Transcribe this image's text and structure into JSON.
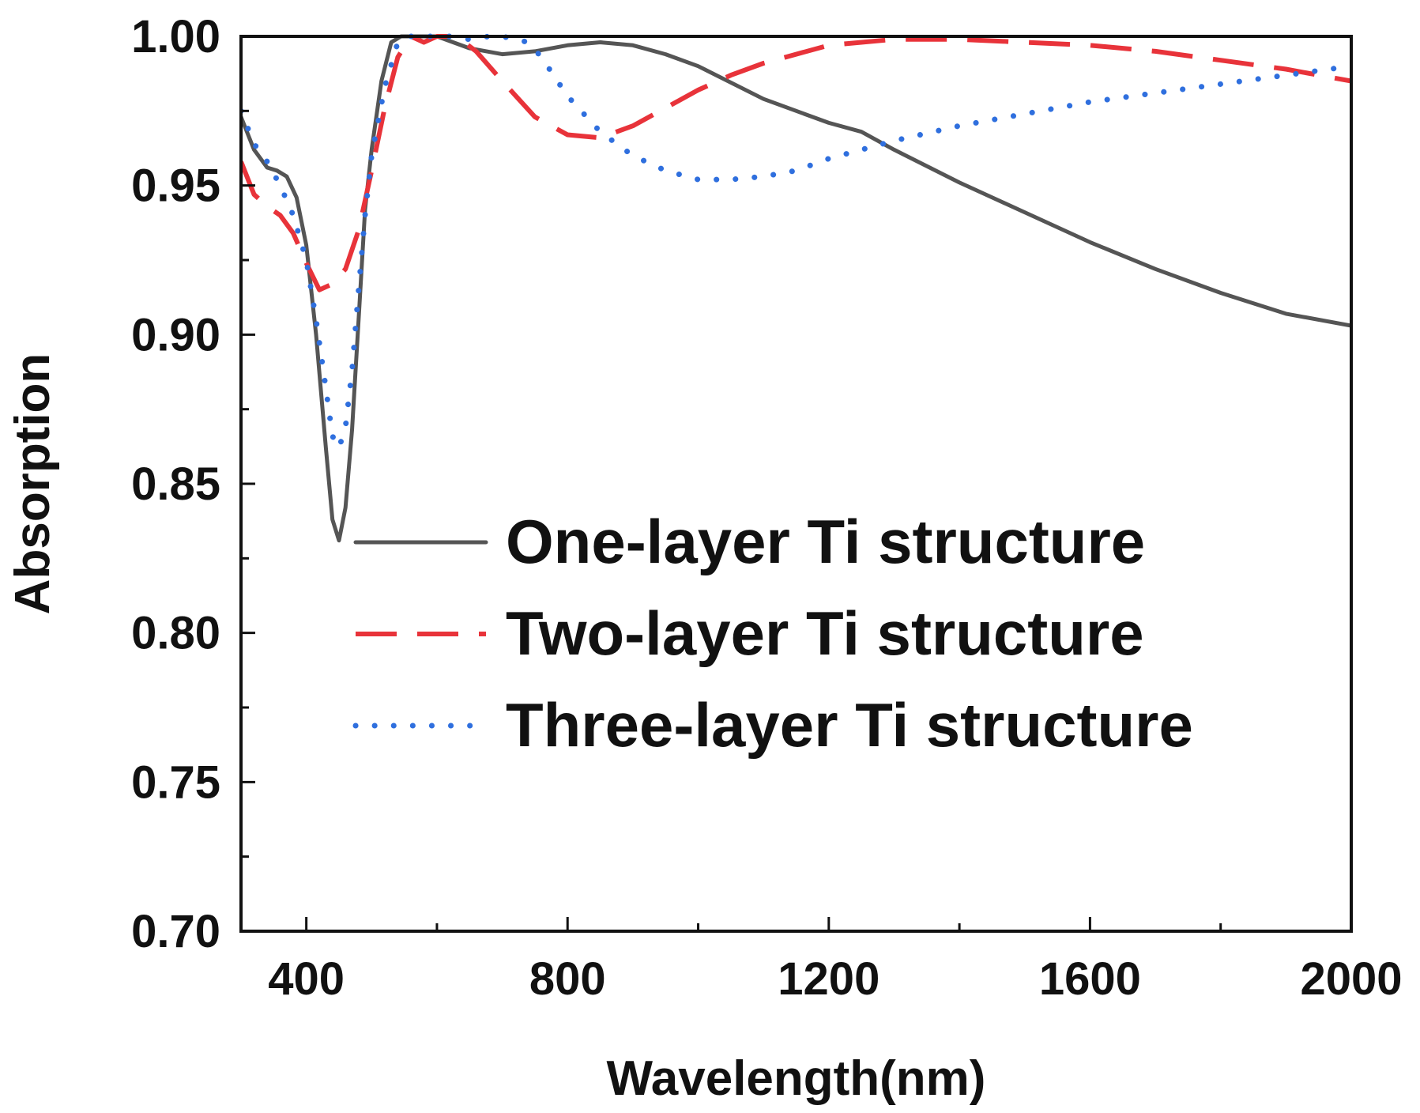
{
  "chart_data": {
    "type": "line",
    "title": "",
    "xlabel": "Wavelength(nm)",
    "ylabel": "Absorption",
    "xlim": [
      300,
      2000
    ],
    "ylim": [
      0.7,
      1.0
    ],
    "xticks": [
      400,
      800,
      1200,
      1600,
      2000
    ],
    "xtick_labels": [
      "400",
      "800",
      "1200",
      "1600",
      "2000"
    ],
    "yticks": [
      0.7,
      0.75,
      0.8,
      0.85,
      0.9,
      0.95,
      1.0
    ],
    "ytick_labels": [
      "0.70",
      "0.75",
      "0.80",
      "0.85",
      "0.90",
      "0.95",
      "1.00"
    ],
    "legend_position": "center-right",
    "grid": false,
    "series": [
      {
        "name": "One-layer Ti structure",
        "style": "solid",
        "color": "#555555",
        "x": [
          300,
          320,
          340,
          355,
          370,
          385,
          400,
          415,
          430,
          440,
          450,
          460,
          470,
          480,
          490,
          500,
          515,
          530,
          545,
          560,
          580,
          600,
          650,
          700,
          750,
          800,
          850,
          900,
          950,
          1000,
          1100,
          1200,
          1250,
          1300,
          1400,
          1500,
          1600,
          1700,
          1800,
          1900,
          2000
        ],
        "y": [
          0.973,
          0.962,
          0.956,
          0.955,
          0.953,
          0.946,
          0.93,
          0.9,
          0.862,
          0.838,
          0.831,
          0.842,
          0.868,
          0.905,
          0.942,
          0.962,
          0.985,
          0.998,
          1.0,
          1.0,
          1.0,
          1.0,
          0.996,
          0.994,
          0.995,
          0.997,
          0.998,
          0.997,
          0.994,
          0.99,
          0.979,
          0.971,
          0.968,
          0.962,
          0.951,
          0.941,
          0.931,
          0.922,
          0.914,
          0.907,
          0.903
        ]
      },
      {
        "name": "Two-layer Ti structure",
        "style": "dashed",
        "color": "#e8333a",
        "x": [
          300,
          320,
          340,
          360,
          380,
          400,
          420,
          440,
          460,
          480,
          500,
          520,
          540,
          560,
          580,
          600,
          630,
          660,
          700,
          750,
          800,
          850,
          900,
          950,
          1000,
          1050,
          1100,
          1200,
          1300,
          1400,
          1500,
          1600,
          1700,
          1800,
          1900,
          2000
        ],
        "y": [
          0.958,
          0.947,
          0.943,
          0.94,
          0.934,
          0.924,
          0.915,
          0.917,
          0.922,
          0.935,
          0.955,
          0.976,
          0.993,
          1.0,
          0.998,
          1.0,
          1.0,
          0.995,
          0.985,
          0.973,
          0.967,
          0.966,
          0.97,
          0.976,
          0.982,
          0.987,
          0.991,
          0.997,
          0.999,
          0.999,
          0.998,
          0.997,
          0.995,
          0.992,
          0.989,
          0.985
        ]
      },
      {
        "name": "Three-layer Ti structure",
        "style": "dotted",
        "color": "#2f6fde",
        "x": [
          300,
          320,
          340,
          360,
          380,
          400,
          415,
          430,
          440,
          450,
          460,
          470,
          480,
          490,
          500,
          520,
          540,
          560,
          580,
          600,
          620,
          650,
          680,
          700,
          720,
          740,
          760,
          800,
          850,
          900,
          950,
          1000,
          1050,
          1100,
          1150,
          1200,
          1300,
          1400,
          1500,
          1600,
          1700,
          1800,
          1900,
          2000
        ],
        "y": [
          0.975,
          0.964,
          0.958,
          0.95,
          0.94,
          0.925,
          0.905,
          0.882,
          0.866,
          0.862,
          0.869,
          0.888,
          0.915,
          0.94,
          0.96,
          0.983,
          0.998,
          1.0,
          1.0,
          1.0,
          1.0,
          0.999,
          1.0,
          1.0,
          0.999,
          0.998,
          0.993,
          0.98,
          0.968,
          0.96,
          0.955,
          0.952,
          0.952,
          0.953,
          0.955,
          0.959,
          0.965,
          0.97,
          0.974,
          0.978,
          0.981,
          0.984,
          0.987,
          0.99
        ]
      }
    ]
  }
}
